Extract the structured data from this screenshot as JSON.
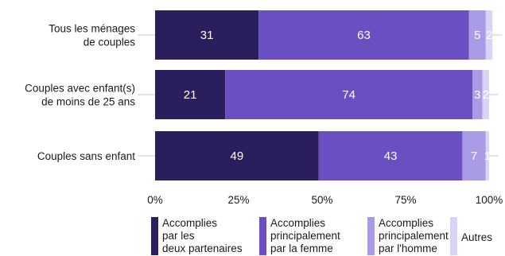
{
  "chart_data": {
    "type": "bar",
    "orientation": "horizontal",
    "stacked": true,
    "categories": [
      [
        "Tous les ménages",
        "de couples"
      ],
      [
        "Couples avec enfant(s)",
        "de moins de 25 ans"
      ],
      [
        "Couples sans enfant"
      ]
    ],
    "series": [
      {
        "name": [
          "Accomplies",
          "par les",
          "deux partenaires"
        ],
        "color": "#2b1e5c",
        "values": [
          31,
          21,
          49
        ]
      },
      {
        "name": [
          "Accomplies",
          "principalement",
          "par la femme"
        ],
        "color": "#6a4fc3",
        "values": [
          63,
          74,
          43
        ]
      },
      {
        "name": [
          "Accomplies",
          "principalement",
          "par l'homme"
        ],
        "color": "#a99be6",
        "values": [
          5,
          3,
          7
        ]
      },
      {
        "name": [
          "Autres"
        ],
        "color": "#d9d3f7",
        "values": [
          2,
          2,
          1
        ]
      }
    ],
    "xticks": [
      "0%",
      "25%",
      "50%",
      "75%",
      "100%"
    ],
    "xlim": [
      0,
      100
    ],
    "legend_position": "bottom",
    "grid": false
  }
}
